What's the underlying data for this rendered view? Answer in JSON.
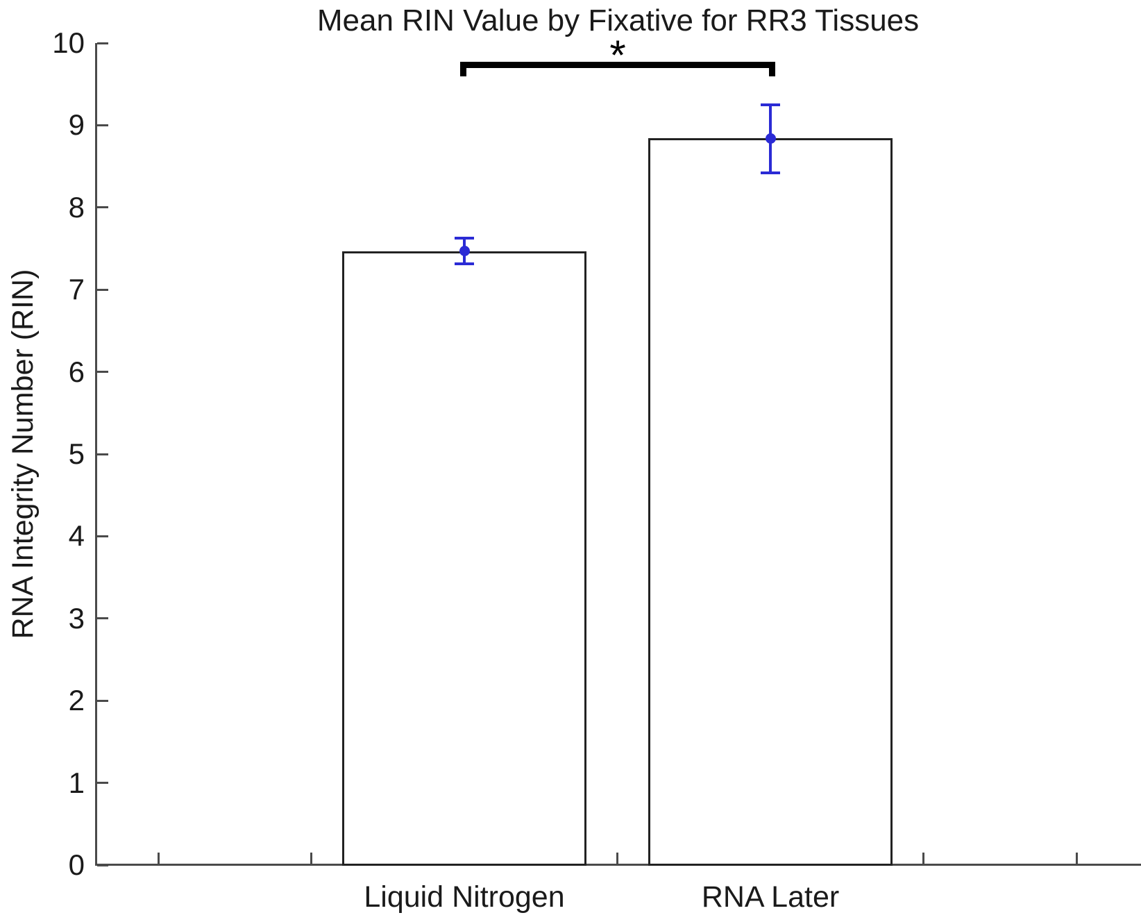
{
  "chart_data": {
    "type": "bar",
    "title": "Mean RIN Value by Fixative for RR3 Tissues",
    "xlabel": "",
    "ylabel": "RNA Integrity Number (RIN)",
    "categories": [
      "Liquid Nitrogen",
      "RNA Later"
    ],
    "values": [
      7.47,
      8.84
    ],
    "error_upper": [
      7.63,
      9.25
    ],
    "error_lower": [
      7.31,
      8.42
    ],
    "ylim": [
      0,
      10
    ],
    "yticks": [
      0,
      1,
      2,
      3,
      4,
      5,
      6,
      7,
      8,
      9,
      10
    ],
    "xlim_axis_units": [
      -0.21,
      3.21
    ],
    "xticks_axis_units": [
      0,
      0.5,
      1,
      1.5,
      2,
      2.5,
      3
    ],
    "bar_centers_axis_units": [
      1,
      2
    ],
    "bar_width_axis_units": 0.8,
    "grid": false,
    "legend": null,
    "significance": {
      "label": "*",
      "between": [
        "Liquid Nitrogen",
        "RNA Later"
      ],
      "y_axis_units": 9.75
    },
    "colors": {
      "background": "#ffffff",
      "bar_fill": "#ffffff",
      "bar_edge": "#222222",
      "error_bar": "#2b2bd5",
      "axis": "#4a4a4a",
      "text": "#1a1a1a",
      "significance": "#000000"
    }
  }
}
